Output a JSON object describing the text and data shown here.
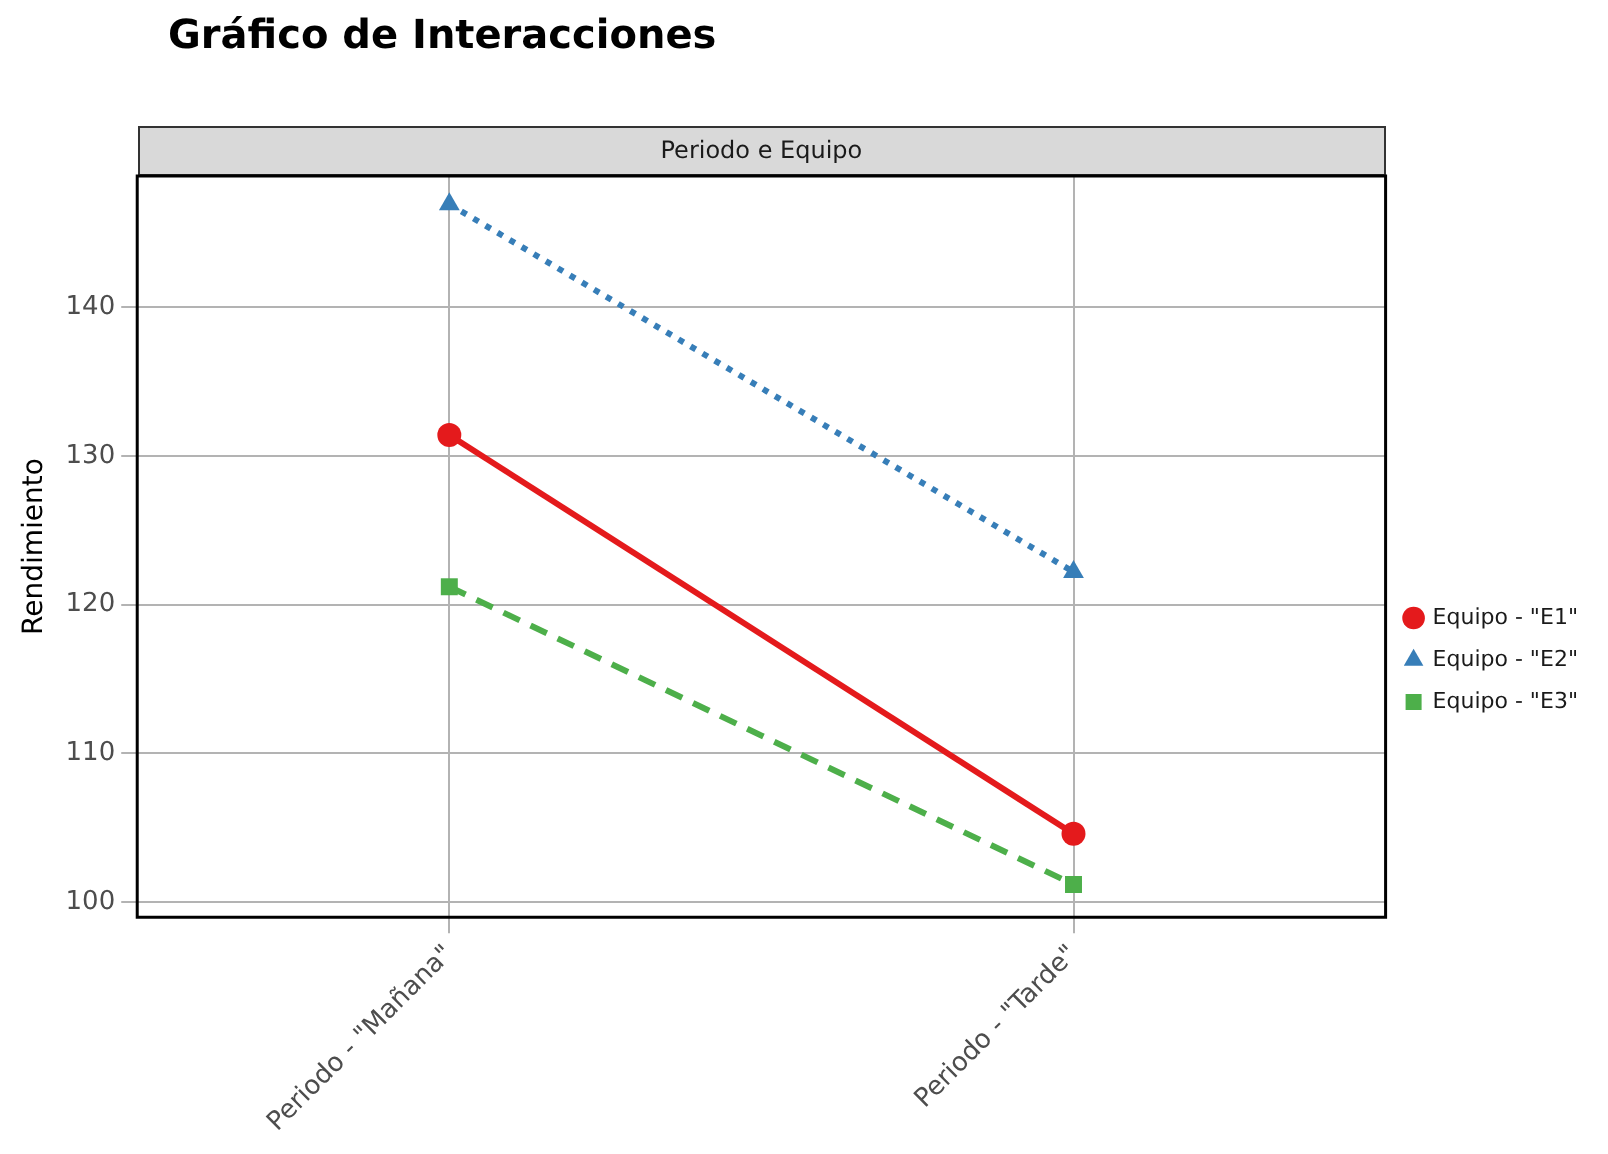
{
  "chart_data": {
    "type": "line",
    "title": "Gráfico de Interacciones",
    "subtitle": "Periodo e Equipo",
    "ylabel": "Rendimiento",
    "categories": [
      "Periodo - \"Mañana\"",
      "Periodo - \"Tarde\""
    ],
    "series": [
      {
        "name": "Equipo - \"E1\"",
        "color": "#e41a1c",
        "values": [
          131.4,
          104.6
        ],
        "marker": "circle",
        "line_style": "solid"
      },
      {
        "name": "Equipo - \"E2\"",
        "color": "#377eb8",
        "values": [
          146.9,
          122.2
        ],
        "marker": "triangle",
        "line_style": "dotted"
      },
      {
        "name": "Equipo - \"E3\"",
        "color": "#4daf4a",
        "values": [
          121.2,
          101.2
        ],
        "marker": "square",
        "line_style": "dashed"
      }
    ],
    "ylim": [
      99,
      148.8
    ],
    "yticks": [
      100,
      110,
      120,
      130,
      140
    ],
    "grid": true,
    "legend": "right"
  }
}
